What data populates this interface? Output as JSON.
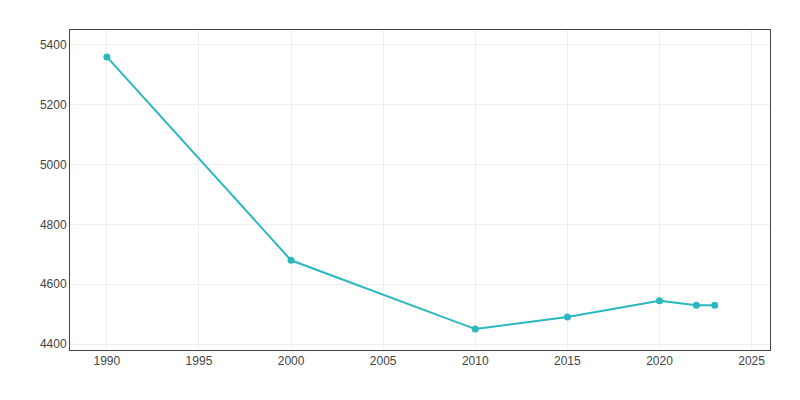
{
  "chart_data": {
    "type": "line",
    "x": [
      1990,
      2000,
      2010,
      2015,
      2020,
      2022,
      2023
    ],
    "values": [
      5360,
      4680,
      4450,
      4490,
      4545,
      4530,
      4530
    ],
    "color": "#29B8C0",
    "marker": "circle",
    "xlim": [
      1988,
      2026
    ],
    "ylim": [
      4380,
      5450
    ],
    "xticks": [
      1990,
      1995,
      2000,
      2005,
      2010,
      2015,
      2020,
      2025
    ],
    "yticks": [
      4400,
      4600,
      4800,
      5000,
      5200,
      5400
    ],
    "grid": true
  }
}
